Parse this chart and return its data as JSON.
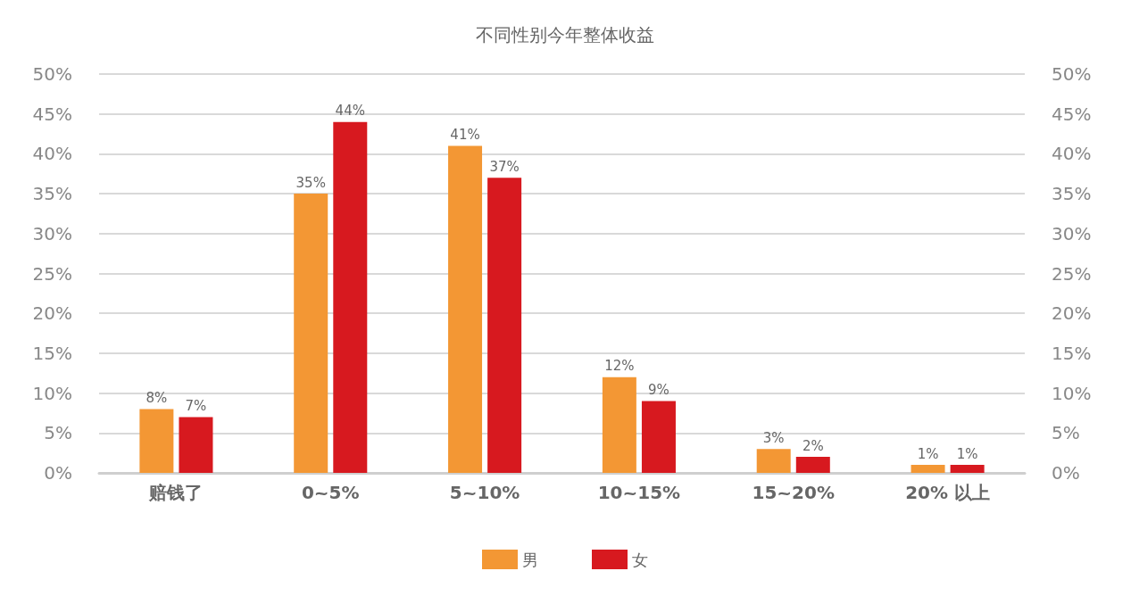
{
  "chart_data": {
    "type": "bar",
    "title": "不同性别今年整体收益",
    "categories": [
      "赔钱了",
      "0~5%",
      "5~10%",
      "10~15%",
      "15~20%",
      "20% 以上"
    ],
    "series": [
      {
        "name": "男",
        "color": "#f39734",
        "values": [
          8,
          35,
          41,
          12,
          3,
          1
        ],
        "value_labels": [
          "8%",
          "35%",
          "41%",
          "12%",
          "3%",
          "1%"
        ]
      },
      {
        "name": "女",
        "color": "#d7191f",
        "values": [
          7,
          44,
          37,
          9,
          2,
          1
        ],
        "value_labels": [
          "7%",
          "44%",
          "37%",
          "9%",
          "2%",
          "1%"
        ]
      }
    ],
    "ylim": [
      0,
      50
    ],
    "yticks": [
      {
        "value": 0,
        "label": "0%"
      },
      {
        "value": 5,
        "label": "5%"
      },
      {
        "value": 10,
        "label": "10%"
      },
      {
        "value": 15,
        "label": "15%"
      },
      {
        "value": 20,
        "label": "20%"
      },
      {
        "value": 25,
        "label": "25%"
      },
      {
        "value": 30,
        "label": "30%"
      },
      {
        "value": 35,
        "label": "35%"
      },
      {
        "value": 40,
        "label": "40%"
      },
      {
        "value": 45,
        "label": "45%"
      },
      {
        "value": 50,
        "label": "50%"
      }
    ],
    "y2lim": [
      0,
      50
    ],
    "y2ticks": [
      {
        "value": 0,
        "label": "0%"
      },
      {
        "value": 5,
        "label": "5%"
      },
      {
        "value": 10,
        "label": "10%"
      },
      {
        "value": 15,
        "label": "15%"
      },
      {
        "value": 20,
        "label": "20%"
      },
      {
        "value": 25,
        "label": "25%"
      },
      {
        "value": 30,
        "label": "30%"
      },
      {
        "value": 35,
        "label": "35%"
      },
      {
        "value": 40,
        "label": "40%"
      },
      {
        "value": 45,
        "label": "45%"
      },
      {
        "value": 50,
        "label": "50%"
      }
    ],
    "grid": "y",
    "legend": "bottom"
  }
}
